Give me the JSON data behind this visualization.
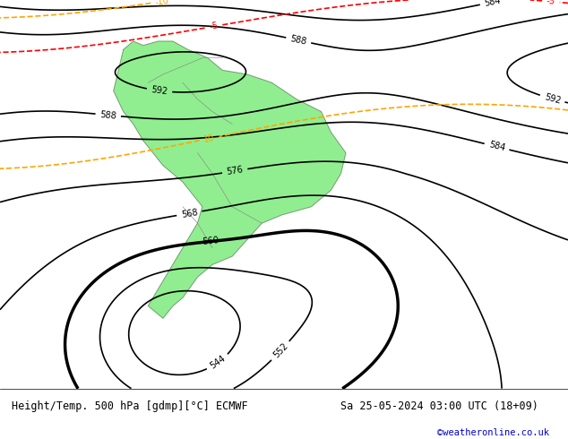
{
  "title_left": "Height/Temp. 500 hPa [gdmp][°C] ECMWF",
  "title_right": "Sa 25-05-2024 03:00 UTC (18+09)",
  "credit": "©weatheronline.co.uk",
  "credit_color": "#0000cc",
  "background_color": "#d3d3d3",
  "land_color": "#90ee90",
  "ocean_color": "#d3d3d3",
  "fig_width": 6.34,
  "fig_height": 4.9,
  "dpi": 100,
  "bottom_bar_color": "#ffffff",
  "bottom_text_color": "#000000"
}
